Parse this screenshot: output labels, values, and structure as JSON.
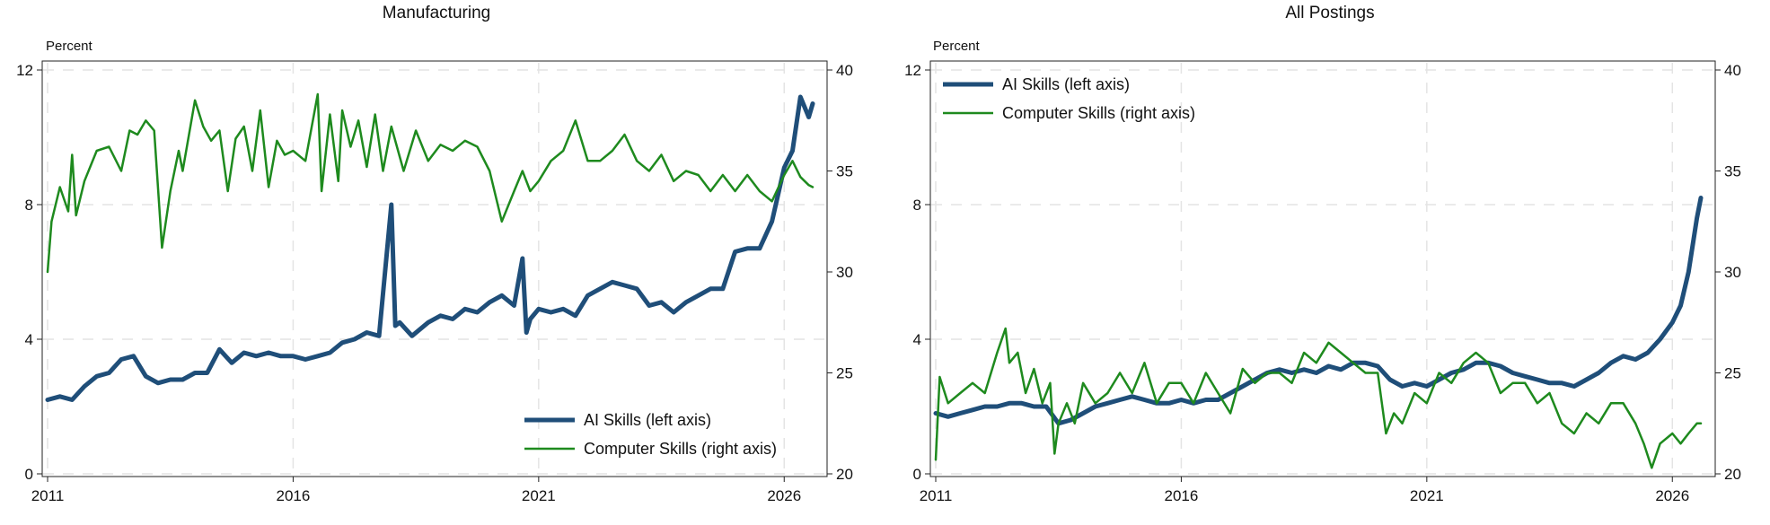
{
  "chart_data": [
    {
      "type": "line",
      "title": "Manufacturing",
      "ylabel": "Percent",
      "xlim": [
        2011,
        2026.8
      ],
      "ylim_left": [
        0,
        12
      ],
      "ylim_right": [
        20,
        40
      ],
      "xticks": [
        2011,
        2016,
        2021,
        2026
      ],
      "yticks_left": [
        0,
        4,
        8,
        12
      ],
      "yticks_right": [
        20,
        25,
        30,
        35,
        40
      ],
      "grid": true,
      "legend_position": "bottom-right",
      "series": [
        {
          "name": "AI Skills (left axis)",
          "axis": "left",
          "color": "#1f4e79",
          "x": [
            2011,
            2011.25,
            2011.5,
            2011.75,
            2012,
            2012.25,
            2012.5,
            2012.75,
            2013,
            2013.25,
            2013.5,
            2013.75,
            2014,
            2014.25,
            2014.5,
            2014.75,
            2015,
            2015.25,
            2015.5,
            2015.75,
            2016,
            2016.25,
            2016.5,
            2016.75,
            2017,
            2017.25,
            2017.5,
            2017.75,
            2018,
            2018.08,
            2018.17,
            2018.42,
            2018.75,
            2019,
            2019.25,
            2019.5,
            2019.75,
            2020,
            2020.25,
            2020.5,
            2020.67,
            2020.75,
            2020.83,
            2021,
            2021.25,
            2021.5,
            2021.75,
            2022,
            2022.25,
            2022.5,
            2022.75,
            2023,
            2023.25,
            2023.5,
            2023.75,
            2024,
            2024.25,
            2024.5,
            2024.75,
            2025,
            2025.25,
            2025.5,
            2025.75,
            2026,
            2026.17,
            2026.33,
            2026.5,
            2026.58
          ],
          "values": [
            2.2,
            2.3,
            2.2,
            2.6,
            2.9,
            3.0,
            3.4,
            3.5,
            2.9,
            2.7,
            2.8,
            2.8,
            3.0,
            3.0,
            3.7,
            3.3,
            3.6,
            3.5,
            3.6,
            3.5,
            3.5,
            3.4,
            3.5,
            3.6,
            3.9,
            4.0,
            4.2,
            4.1,
            8.0,
            4.4,
            4.5,
            4.1,
            4.5,
            4.7,
            4.6,
            4.9,
            4.8,
            5.1,
            5.3,
            5.0,
            6.4,
            4.2,
            4.6,
            4.9,
            4.8,
            4.9,
            4.7,
            5.3,
            5.5,
            5.7,
            5.6,
            5.5,
            5.0,
            5.1,
            4.8,
            5.1,
            5.3,
            5.5,
            5.5,
            6.6,
            6.7,
            6.7,
            7.5,
            9.1,
            9.6,
            11.2,
            10.6,
            11.0
          ]
        },
        {
          "name": "Computer Skills (right axis)",
          "axis": "right",
          "color": "#1e8a1e",
          "x": [
            2011,
            2011.08,
            2011.25,
            2011.42,
            2011.5,
            2011.58,
            2011.75,
            2012,
            2012.25,
            2012.5,
            2012.67,
            2012.83,
            2013,
            2013.17,
            2013.33,
            2013.5,
            2013.67,
            2013.75,
            2014,
            2014.17,
            2014.33,
            2014.5,
            2014.67,
            2014.83,
            2015,
            2015.17,
            2015.33,
            2015.5,
            2015.67,
            2015.83,
            2016,
            2016.25,
            2016.5,
            2016.58,
            2016.75,
            2016.92,
            2017,
            2017.17,
            2017.33,
            2017.5,
            2017.67,
            2017.83,
            2018,
            2018.25,
            2018.5,
            2018.75,
            2019,
            2019.25,
            2019.5,
            2019.75,
            2020,
            2020.25,
            2020.5,
            2020.67,
            2020.83,
            2021,
            2021.25,
            2021.5,
            2021.75,
            2022,
            2022.25,
            2022.5,
            2022.75,
            2023,
            2023.25,
            2023.5,
            2023.75,
            2024,
            2024.25,
            2024.5,
            2024.75,
            2025,
            2025.25,
            2025.5,
            2025.75,
            2026,
            2026.17,
            2026.33,
            2026.5,
            2026.58
          ],
          "values": [
            30.0,
            32.5,
            34.2,
            33.0,
            35.8,
            32.8,
            34.5,
            36.0,
            36.2,
            35.0,
            37.0,
            36.8,
            37.5,
            37.0,
            31.2,
            34.0,
            36.0,
            35.0,
            38.5,
            37.2,
            36.5,
            37.0,
            34.0,
            36.6,
            37.2,
            35.0,
            38.0,
            34.2,
            36.5,
            35.8,
            36.0,
            35.5,
            38.8,
            34.0,
            37.8,
            34.5,
            38.0,
            36.2,
            37.5,
            35.2,
            37.8,
            35.0,
            37.2,
            35.0,
            37.0,
            35.5,
            36.3,
            36.0,
            36.5,
            36.2,
            35.0,
            32.5,
            34.0,
            35.0,
            34.0,
            34.5,
            35.5,
            36.0,
            37.5,
            35.5,
            35.5,
            36.0,
            36.8,
            35.5,
            35.0,
            35.8,
            34.5,
            35.0,
            34.8,
            34.0,
            34.8,
            34.0,
            34.8,
            34.0,
            33.5,
            34.8,
            35.5,
            34.7,
            34.3,
            34.2
          ]
        }
      ]
    },
    {
      "type": "line",
      "title": "All Postings",
      "ylabel": "Percent",
      "xlim": [
        2011,
        2026.8
      ],
      "ylim_left": [
        0,
        12
      ],
      "ylim_right": [
        20,
        40
      ],
      "xticks": [
        2011,
        2016,
        2021,
        2026
      ],
      "yticks_left": [
        0,
        4,
        8,
        12
      ],
      "yticks_right": [
        20,
        25,
        30,
        35,
        40
      ],
      "grid": true,
      "legend_position": "top-left",
      "series": [
        {
          "name": "AI Skills (left axis)",
          "axis": "left",
          "color": "#1f4e79",
          "x": [
            2011,
            2011.25,
            2011.5,
            2011.75,
            2012,
            2012.25,
            2012.5,
            2012.75,
            2013,
            2013.25,
            2013.5,
            2013.75,
            2014,
            2014.25,
            2014.5,
            2014.75,
            2015,
            2015.25,
            2015.5,
            2015.75,
            2016,
            2016.25,
            2016.5,
            2016.75,
            2017,
            2017.25,
            2017.5,
            2017.75,
            2018,
            2018.25,
            2018.5,
            2018.75,
            2019,
            2019.25,
            2019.5,
            2019.75,
            2020,
            2020.25,
            2020.5,
            2020.75,
            2021,
            2021.25,
            2021.5,
            2021.75,
            2022,
            2022.25,
            2022.5,
            2022.75,
            2023,
            2023.25,
            2023.5,
            2023.75,
            2024,
            2024.25,
            2024.5,
            2024.75,
            2025,
            2025.25,
            2025.5,
            2025.75,
            2026,
            2026.17,
            2026.33,
            2026.5,
            2026.58
          ],
          "values": [
            1.8,
            1.7,
            1.8,
            1.9,
            2.0,
            2.0,
            2.1,
            2.1,
            2.0,
            2.0,
            1.5,
            1.6,
            1.8,
            2.0,
            2.1,
            2.2,
            2.3,
            2.2,
            2.1,
            2.1,
            2.2,
            2.1,
            2.2,
            2.2,
            2.4,
            2.6,
            2.8,
            3.0,
            3.1,
            3.0,
            3.1,
            3.0,
            3.2,
            3.1,
            3.3,
            3.3,
            3.2,
            2.8,
            2.6,
            2.7,
            2.6,
            2.8,
            3.0,
            3.1,
            3.3,
            3.3,
            3.2,
            3.0,
            2.9,
            2.8,
            2.7,
            2.7,
            2.6,
            2.8,
            3.0,
            3.3,
            3.5,
            3.4,
            3.6,
            4.0,
            4.5,
            5.0,
            6.0,
            7.6,
            8.2
          ]
        },
        {
          "name": "Computer Skills (right axis)",
          "axis": "right",
          "color": "#1e8a1e",
          "x": [
            2011,
            2011.08,
            2011.25,
            2011.5,
            2011.75,
            2012,
            2012.25,
            2012.42,
            2012.5,
            2012.67,
            2012.83,
            2013,
            2013.17,
            2013.33,
            2013.42,
            2013.5,
            2013.67,
            2013.83,
            2014,
            2014.25,
            2014.5,
            2014.75,
            2015,
            2015.25,
            2015.5,
            2015.75,
            2016,
            2016.25,
            2016.5,
            2016.75,
            2017,
            2017.25,
            2017.5,
            2017.75,
            2018,
            2018.25,
            2018.5,
            2018.75,
            2019,
            2019.25,
            2019.5,
            2019.75,
            2020,
            2020.17,
            2020.33,
            2020.5,
            2020.75,
            2021,
            2021.25,
            2021.5,
            2021.75,
            2022,
            2022.25,
            2022.5,
            2022.75,
            2023,
            2023.25,
            2023.5,
            2023.75,
            2024,
            2024.25,
            2024.5,
            2024.75,
            2025,
            2025.25,
            2025.42,
            2025.58,
            2025.75,
            2026,
            2026.17,
            2026.33,
            2026.5,
            2026.58
          ],
          "values": [
            20.7,
            24.8,
            23.5,
            24.0,
            24.5,
            24.0,
            26.0,
            27.2,
            25.5,
            26.0,
            24.0,
            25.2,
            23.5,
            24.5,
            21.0,
            22.5,
            23.5,
            22.5,
            24.5,
            23.5,
            24.0,
            25.0,
            24.0,
            25.5,
            23.5,
            24.5,
            24.5,
            23.5,
            25.0,
            24.0,
            23.0,
            25.2,
            24.5,
            25.0,
            25.0,
            24.5,
            26.0,
            25.5,
            26.5,
            26.0,
            25.5,
            25.0,
            25.0,
            22.0,
            23.0,
            22.5,
            24.0,
            23.5,
            25.0,
            24.5,
            25.5,
            26.0,
            25.5,
            24.0,
            24.5,
            24.5,
            23.5,
            24.0,
            22.5,
            22.0,
            23.0,
            22.5,
            23.5,
            23.5,
            22.5,
            21.5,
            20.3,
            21.5,
            22.0,
            21.5,
            22.0,
            22.5,
            22.5
          ]
        }
      ]
    }
  ]
}
